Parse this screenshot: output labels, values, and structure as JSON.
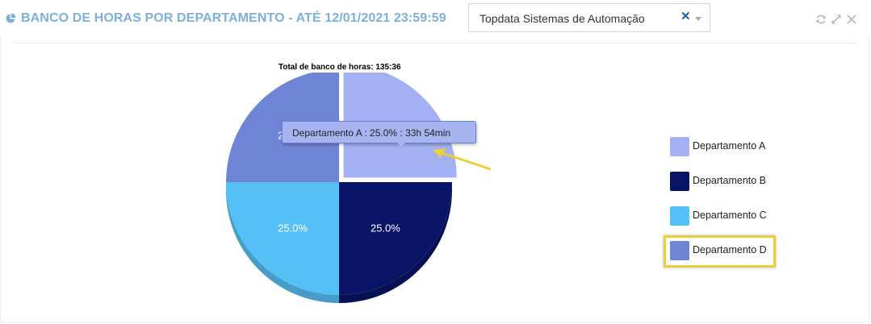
{
  "header": {
    "title": "BANCO DE HORAS POR DEPARTAMENTO - ATÉ 12/01/2021 23:59:59",
    "title_color": "#7fb0d8",
    "icon": "pie-chart-icon"
  },
  "company_select": {
    "value": "Topdata Sistemas de Automação",
    "clear_symbol": "✕",
    "icons": [
      "clear-icon",
      "chevron-down-icon"
    ]
  },
  "tools": {
    "icons": [
      "refresh-icon",
      "expand-icon",
      "close-icon"
    ]
  },
  "chart_data": {
    "type": "pie",
    "title": "Total de banco de horas: 135:36",
    "categories": [
      "Departamento A",
      "Departamento B",
      "Departamento C",
      "Departamento D"
    ],
    "values": [
      25.0,
      25.0,
      25.0,
      25.0
    ],
    "slice_labels": [
      "",
      "25.0%",
      "25.0%",
      "25.0%"
    ],
    "colors": [
      "#a3b0f1",
      "#0a1466",
      "#55c0f6",
      "#7084d6"
    ],
    "legend_placement": "right"
  },
  "tooltip": {
    "text": "Departamento A : 25.0% : 33h 54min"
  },
  "annotation": {
    "arrow_color": "#e9cf3a",
    "highlighted_legend_item": "Departamento D"
  }
}
